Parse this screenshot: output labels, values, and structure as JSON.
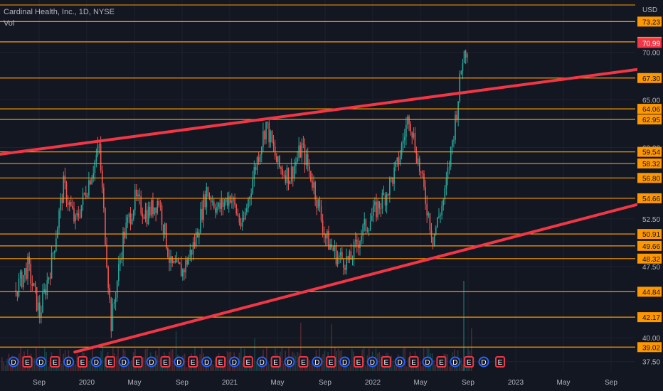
{
  "header": {
    "symbol_line": "Cardinal Health, Inc., 1D, NYSE",
    "volume_label": "Vol"
  },
  "colors": {
    "background": "#131722",
    "grid": "#1e222d",
    "level_line": "#ff9800",
    "trend_line": "#f23645",
    "candle_up": "#26a69a",
    "candle_down": "#ef5350",
    "axis_text": "#b2b5be",
    "dividend_badge": "#2962ff",
    "earnings_badge": "#f23645",
    "current_price_badge": "#f23645"
  },
  "chart_data": {
    "type": "candlestick",
    "title": "Cardinal Health, Inc., 1D, NYSE",
    "currency_label": "USD",
    "y_axis_ticks": [
      37.5,
      40.0,
      47.5,
      52.5,
      60.0,
      65.0,
      70.0
    ],
    "y_range": [
      36.5,
      75.5
    ],
    "x_axis_ticks": [
      "Sep",
      "2020",
      "May",
      "Sep",
      "2021",
      "May",
      "Sep",
      "2022",
      "May",
      "Sep",
      "2023",
      "May",
      "Sep"
    ],
    "horizontal_levels": [
      39.02,
      42.17,
      44.84,
      48.32,
      49.66,
      50.91,
      54.66,
      56.8,
      58.32,
      59.54,
      62.95,
      64.06,
      67.3,
      71.1,
      73.23
    ],
    "current_price": 70.99,
    "trend_lines": [
      {
        "name": "upper",
        "from": [
          "Jul 2019",
          59.5
        ],
        "to": [
          "Jan 2024",
          68.5
        ]
      },
      {
        "name": "lower",
        "from": [
          "Dec 2019",
          38.5
        ],
        "to": [
          "Jan 2024",
          54.6
        ]
      }
    ],
    "price_path": [
      [
        "Jul 2019",
        45.0
      ],
      [
        "Aug 2019",
        47.5
      ],
      [
        "Sep 2019",
        42.5
      ],
      [
        "Oct 2019",
        48.0
      ],
      [
        "Nov 2019",
        56.0
      ],
      [
        "Dec 2019",
        52.0
      ],
      [
        "Jan 2020",
        56.0
      ],
      [
        "Feb 2020",
        60.0
      ],
      [
        "Mar 2020",
        41.5
      ],
      [
        "Apr 2020",
        50.5
      ],
      [
        "May 2020",
        54.5
      ],
      [
        "Jun 2020",
        53.0
      ],
      [
        "Jul 2020",
        54.5
      ],
      [
        "Aug 2020",
        47.5
      ],
      [
        "Sep 2020",
        47.0
      ],
      [
        "Oct 2020",
        50.0
      ],
      [
        "Nov 2020",
        55.5
      ],
      [
        "Dec 2020",
        53.5
      ],
      [
        "Jan 2021",
        55.0
      ],
      [
        "Feb 2021",
        51.5
      ],
      [
        "Mar 2021",
        57.5
      ],
      [
        "Apr 2021",
        62.5
      ],
      [
        "May 2021",
        58.0
      ],
      [
        "Jun 2021",
        57.0
      ],
      [
        "Jul 2021",
        60.0
      ],
      [
        "Aug 2021",
        56.0
      ],
      [
        "Sep 2021",
        50.5
      ],
      [
        "Oct 2021",
        48.5
      ],
      [
        "Nov 2021",
        48.0
      ],
      [
        "Dec 2021",
        51.0
      ],
      [
        "Jan 2022",
        53.0
      ],
      [
        "Feb 2022",
        55.0
      ],
      [
        "Mar 2022",
        58.0
      ],
      [
        "Apr 2022",
        63.5
      ],
      [
        "May 2022",
        57.0
      ],
      [
        "Jun 2022",
        50.5
      ],
      [
        "Jul 2022",
        55.0
      ],
      [
        "Aug 2022",
        64.0
      ],
      [
        "Aug 2022b",
        69.5
      ],
      [
        "Sep 2022",
        71.0
      ]
    ],
    "event_markers": [
      "D",
      "E",
      "D",
      "E",
      "D",
      "E",
      "D",
      "E",
      "D",
      "E",
      "D",
      "E",
      "D",
      "E",
      "D",
      "E",
      "D",
      "E",
      "D",
      "E",
      "D",
      "E",
      "D",
      "E",
      "D",
      "E",
      "D",
      "E",
      "D",
      "E",
      "D",
      "E",
      "D",
      "E"
    ]
  }
}
